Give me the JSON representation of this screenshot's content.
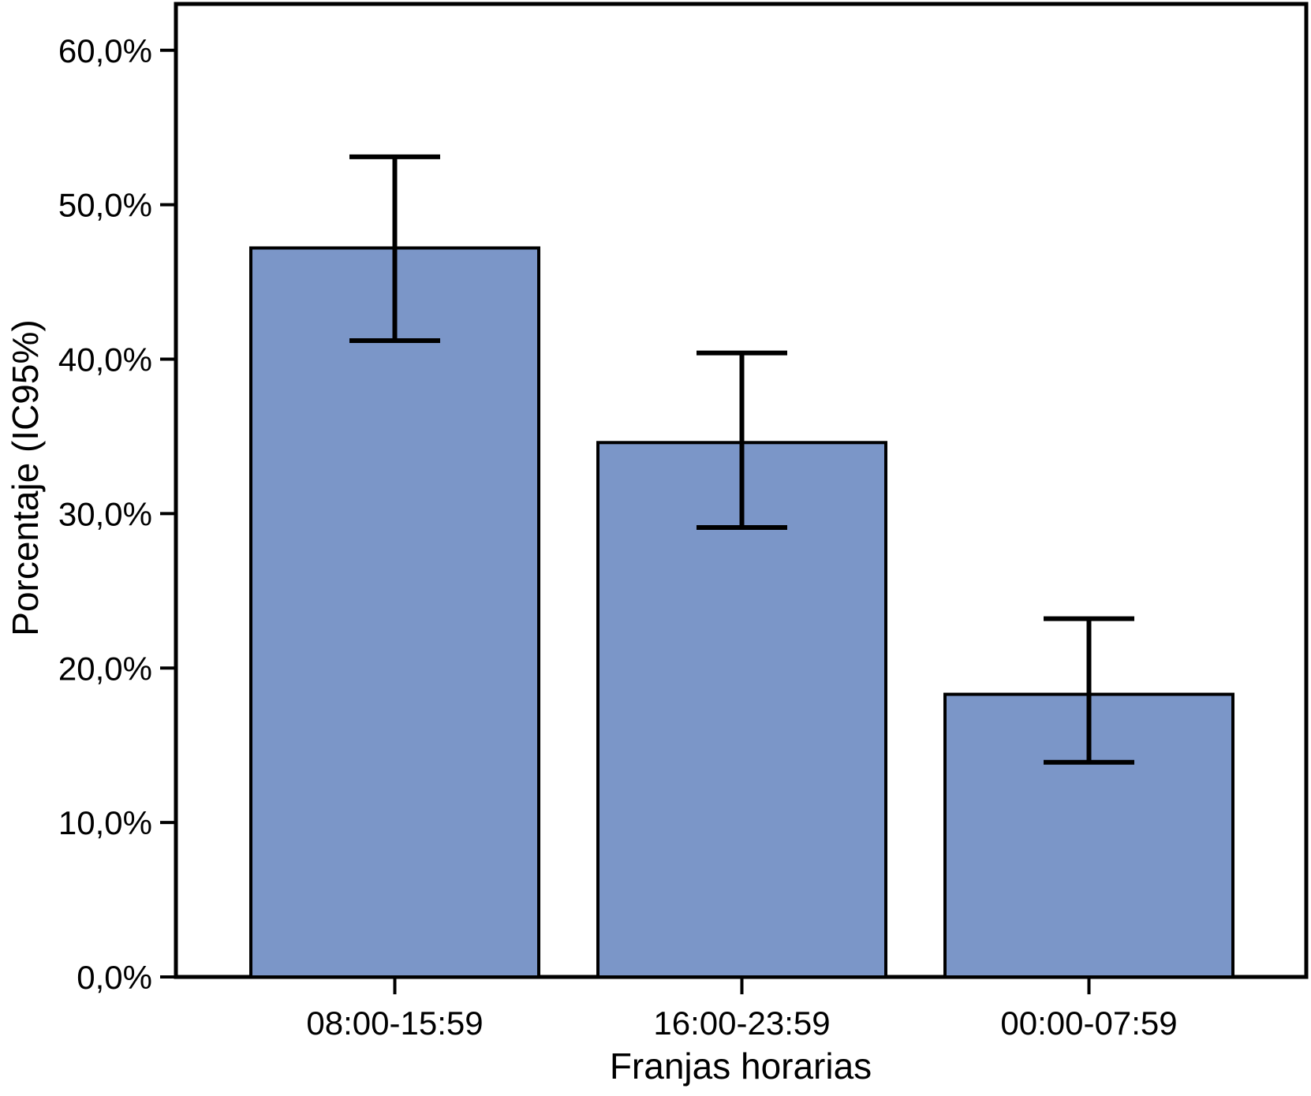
{
  "chart_data": {
    "type": "bar",
    "xlabel": "Franjas horarias",
    "ylabel": "Porcentaje (IC95%)",
    "categories": [
      "08:00-15:59",
      "16:00-23:59",
      "00:00-07:59"
    ],
    "series": [
      {
        "name": "Porcentaje",
        "values": [
          47.2,
          34.6,
          18.3
        ],
        "ci_low": [
          41.2,
          29.1,
          13.9
        ],
        "ci_high": [
          53.1,
          40.4,
          23.2
        ]
      }
    ],
    "ylim": [
      0,
      63
    ],
    "yticks": [
      0,
      10,
      20,
      30,
      40,
      50,
      60
    ],
    "ytick_labels": [
      "0,0%",
      "10,0%",
      "20,0%",
      "30,0%",
      "40,0%",
      "50,0%",
      "60,0%"
    ],
    "grid": false,
    "legend": "none",
    "colors": {
      "bar_fill": "#7b96c8",
      "bar_stroke": "#000000",
      "axis": "#000000",
      "text": "#000000",
      "background": "#ffffff"
    }
  }
}
